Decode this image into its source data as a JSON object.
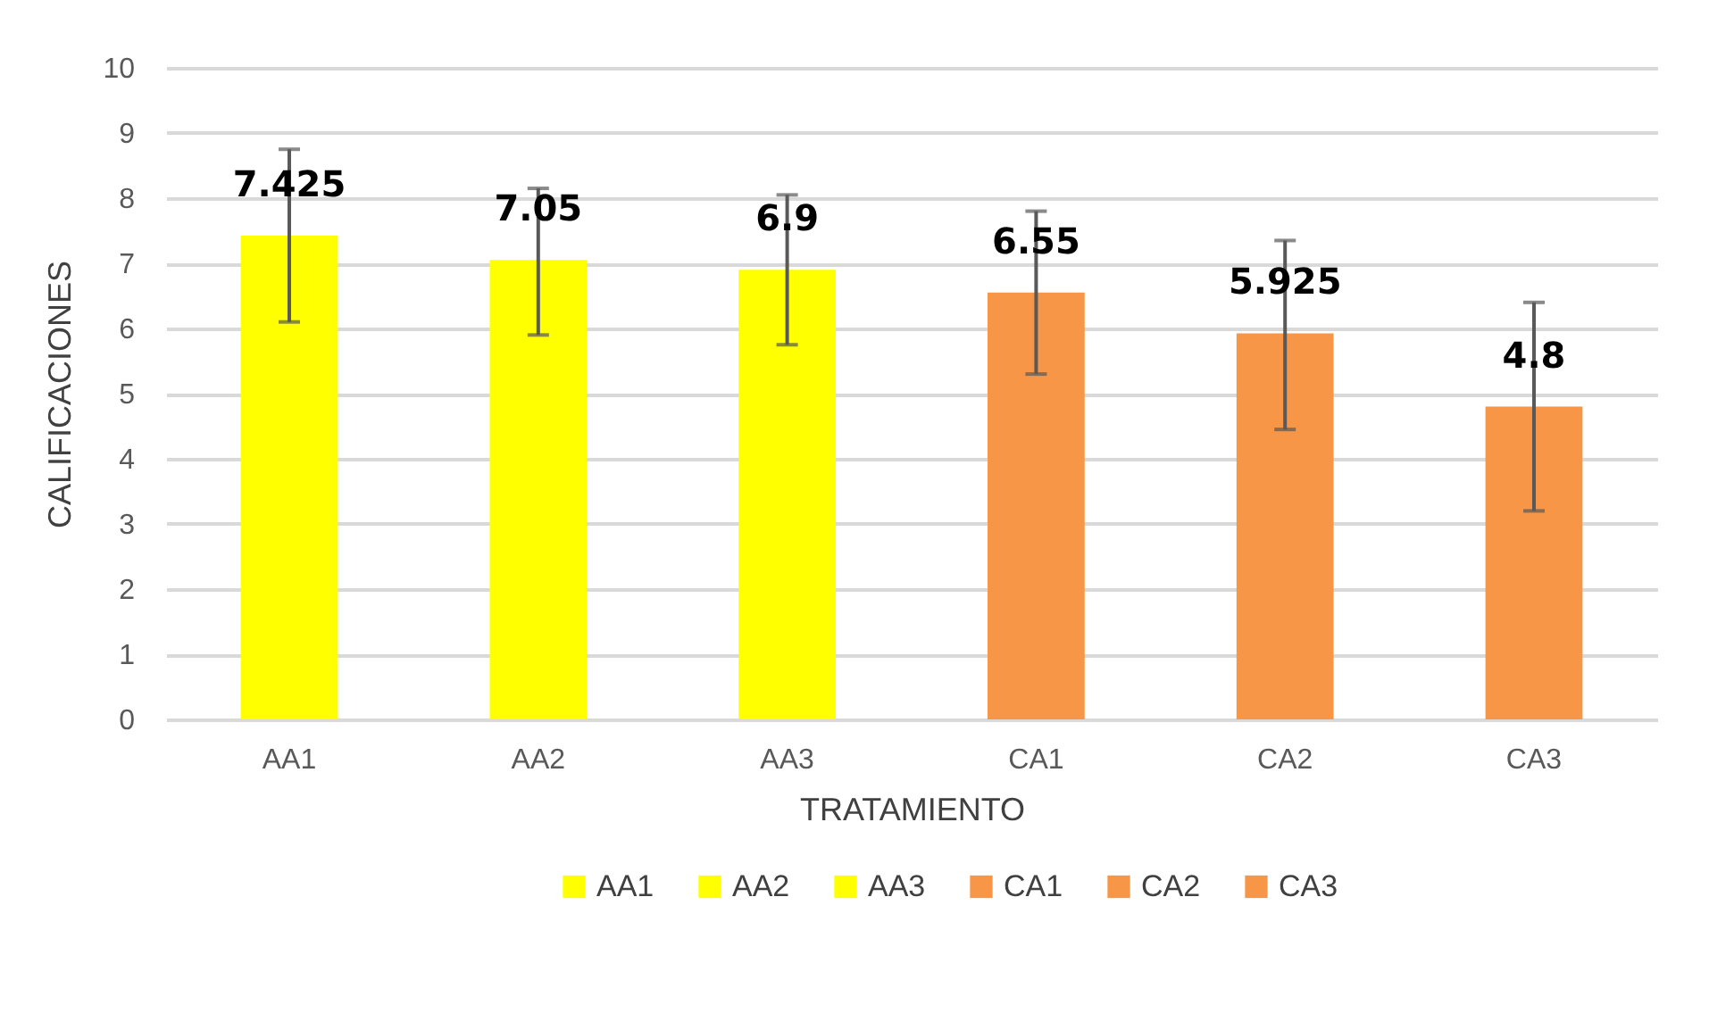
{
  "chart_data": {
    "type": "bar",
    "xlabel": "TRATAMIENTO",
    "ylabel": "CALIFICACIONES",
    "categories": [
      "AA1",
      "AA2",
      "AA3",
      "CA1",
      "CA2",
      "CA3"
    ],
    "series": [
      {
        "name": "AA1",
        "color": "#ffff00",
        "values": [
          7.425,
          null,
          null,
          null,
          null,
          null
        ],
        "errors": [
          [
            6.1,
            8.75
          ],
          null,
          null,
          null,
          null,
          null
        ]
      },
      {
        "name": "AA2",
        "color": "#ffff00",
        "values": [
          null,
          7.05,
          null,
          null,
          null,
          null
        ],
        "errors": [
          null,
          [
            5.9,
            8.15
          ],
          null,
          null,
          null,
          null
        ]
      },
      {
        "name": "AA3",
        "color": "#ffff00",
        "values": [
          null,
          null,
          6.9,
          null,
          null,
          null
        ],
        "errors": [
          null,
          null,
          [
            5.75,
            8.05
          ],
          null,
          null,
          null
        ]
      },
      {
        "name": "CA1",
        "color": "#f79646",
        "values": [
          null,
          null,
          null,
          6.55,
          null,
          null
        ],
        "errors": [
          null,
          null,
          null,
          [
            5.3,
            7.8
          ],
          null,
          null
        ]
      },
      {
        "name": "CA2",
        "color": "#f79646",
        "values": [
          null,
          null,
          null,
          null,
          5.925,
          null
        ],
        "errors": [
          null,
          null,
          null,
          null,
          [
            4.45,
            7.35
          ],
          null
        ]
      },
      {
        "name": "CA3",
        "color": "#f79646",
        "values": [
          null,
          null,
          null,
          null,
          null,
          4.8
        ],
        "errors": [
          null,
          null,
          null,
          null,
          null,
          [
            3.2,
            6.4
          ]
        ]
      }
    ],
    "ylim": [
      0,
      10
    ],
    "yticks": [
      0,
      1,
      2,
      3,
      4,
      5,
      6,
      7,
      8,
      9,
      10
    ],
    "grid": "y",
    "legend": "bottom",
    "data_labels": true
  }
}
